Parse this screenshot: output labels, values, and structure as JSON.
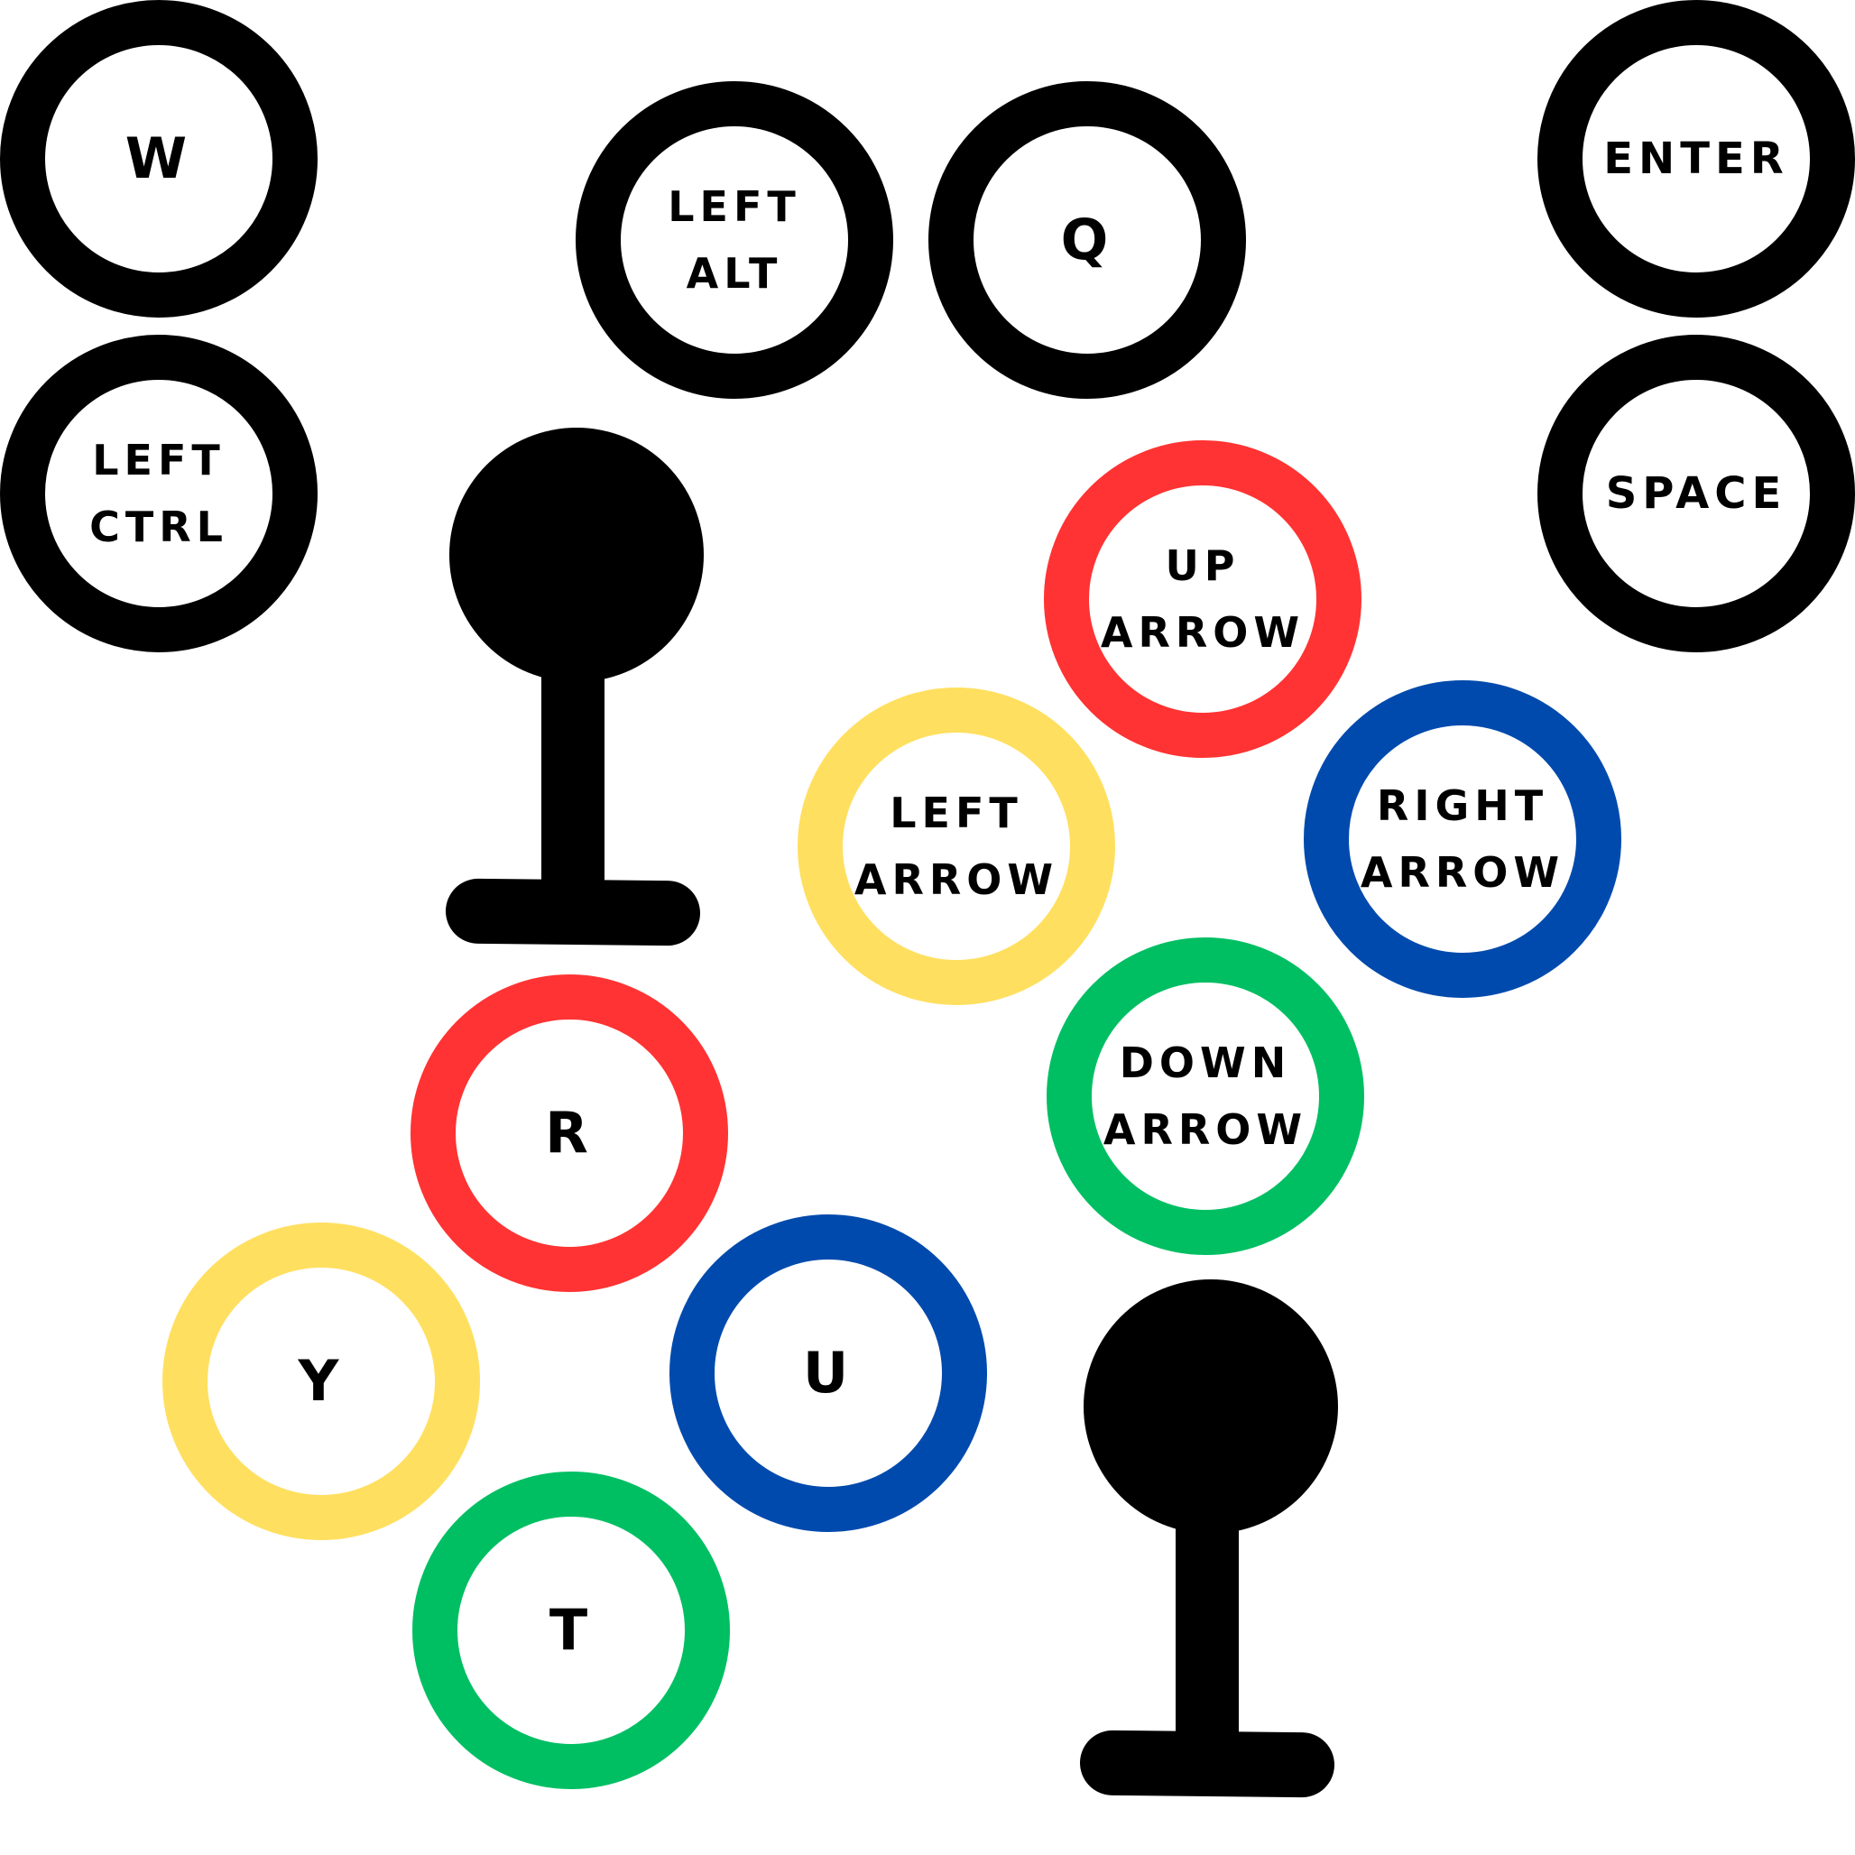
{
  "colors": {
    "black": "#000000",
    "red": "#ff3333",
    "yellow": "#ffdf5f",
    "blue": "#004aad",
    "green": "#00bf63"
  },
  "buttons": {
    "w": {
      "lines": [
        "W"
      ]
    },
    "left_alt": {
      "lines": [
        "LEFT",
        "ALT"
      ]
    },
    "q": {
      "lines": [
        "Q"
      ]
    },
    "enter": {
      "lines": [
        "ENTER"
      ]
    },
    "left_ctrl": {
      "lines": [
        "LEFT",
        "CTRL"
      ]
    },
    "space": {
      "lines": [
        "SPACE"
      ]
    },
    "up_arrow": {
      "lines": [
        "UP",
        "ARROW"
      ]
    },
    "left_arrow": {
      "lines": [
        "LEFT",
        "ARROW"
      ]
    },
    "right_arrow": {
      "lines": [
        "RIGHT",
        "ARROW"
      ]
    },
    "down_arrow": {
      "lines": [
        "DOWN",
        "ARROW"
      ]
    },
    "r": {
      "lines": [
        "R"
      ]
    },
    "y": {
      "lines": [
        "Y"
      ]
    },
    "u": {
      "lines": [
        "U"
      ]
    },
    "t": {
      "lines": [
        "T"
      ]
    }
  }
}
